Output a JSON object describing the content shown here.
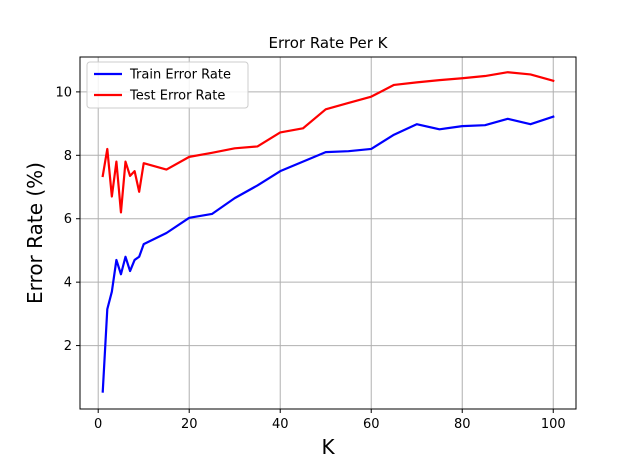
{
  "chart_data": {
    "type": "line",
    "title": "Error Rate Per K",
    "xlabel": "K",
    "ylabel": "Error Rate (%)",
    "xlim": [
      -4,
      105
    ],
    "ylim": [
      0,
      11.1
    ],
    "xticks": [
      0,
      20,
      40,
      60,
      80,
      100
    ],
    "yticks": [
      2,
      4,
      6,
      8,
      10
    ],
    "grid": true,
    "legend_position": "top-left",
    "series": [
      {
        "name": "Train Error Rate",
        "color": "#0000ff",
        "x": [
          1,
          2,
          3,
          4,
          5,
          6,
          7,
          8,
          9,
          10,
          15,
          20,
          25,
          30,
          35,
          40,
          45,
          50,
          55,
          60,
          65,
          70,
          75,
          80,
          85,
          90,
          95,
          100
        ],
        "y": [
          0.55,
          3.15,
          3.7,
          4.7,
          4.25,
          4.8,
          4.35,
          4.7,
          4.8,
          5.2,
          5.55,
          6.03,
          6.15,
          6.65,
          7.05,
          7.5,
          7.8,
          8.1,
          8.13,
          8.2,
          8.65,
          8.98,
          8.82,
          8.92,
          8.95,
          9.15,
          8.98,
          9.22
        ]
      },
      {
        "name": "Test Error Rate",
        "color": "#ff0000",
        "x": [
          1,
          2,
          3,
          4,
          5,
          6,
          7,
          8,
          9,
          10,
          15,
          20,
          25,
          30,
          35,
          40,
          45,
          50,
          55,
          60,
          65,
          70,
          75,
          80,
          85,
          90,
          95,
          100
        ],
        "y": [
          7.35,
          8.2,
          6.7,
          7.8,
          6.2,
          7.8,
          7.35,
          7.5,
          6.85,
          7.75,
          7.55,
          7.95,
          8.08,
          8.22,
          8.28,
          8.72,
          8.85,
          9.45,
          9.65,
          9.85,
          10.22,
          10.3,
          10.37,
          10.43,
          10.5,
          10.62,
          10.55,
          10.35
        ]
      }
    ]
  }
}
